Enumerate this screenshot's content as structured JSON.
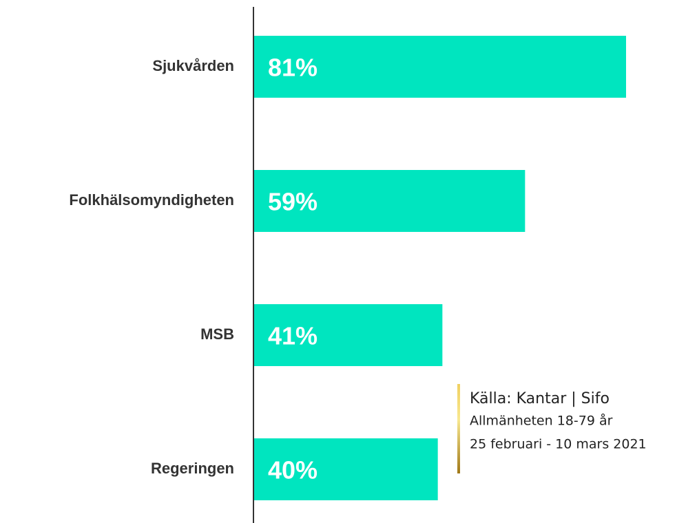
{
  "chart_data": {
    "type": "bar",
    "orientation": "horizontal",
    "categories": [
      "Sjukvården",
      "Folkhälsomyndigheten",
      "MSB",
      "Regeringen"
    ],
    "values": [
      81,
      59,
      41,
      40
    ],
    "value_labels": [
      "81%",
      "59%",
      "41%",
      "40%"
    ],
    "color": "#00e5bf",
    "source": [
      "Källa: Kantar | Sifo",
      "Allmänheten 18-79 år",
      "25 februari - 10 mars 2021"
    ]
  }
}
